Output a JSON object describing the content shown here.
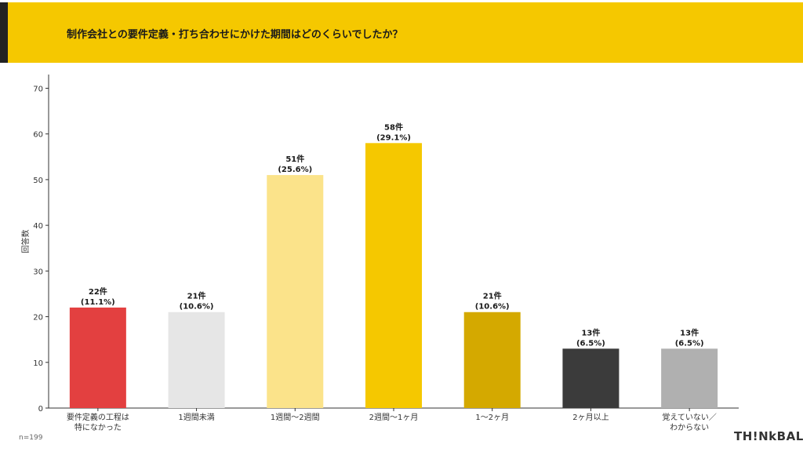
{
  "header": {
    "title": "制作会社との要件定義・打ち合わせにかけた期間はどのくらいでしたか？"
  },
  "footer": {
    "sample_size": "n=199",
    "brand": "TH!NkBAL"
  },
  "colors": {
    "header_bg": "#f5c800",
    "accent": "#222222"
  },
  "chart_data": {
    "type": "bar",
    "ylabel": "回答数",
    "xlabel": "",
    "ylim": [
      0,
      73
    ],
    "yticks": [
      0,
      10,
      20,
      30,
      40,
      50,
      60,
      70
    ],
    "grid": false,
    "categories": [
      [
        "要件定義の工程は",
        "特になかった"
      ],
      [
        "1週間未満"
      ],
      [
        "1週間〜2週間"
      ],
      [
        "2週間〜1ヶ月"
      ],
      [
        "1〜2ヶ月"
      ],
      [
        "2ヶ月以上"
      ],
      [
        "覚えていない／",
        "わからない"
      ]
    ],
    "values": [
      22,
      21,
      51,
      58,
      21,
      13,
      13
    ],
    "data_labels": [
      [
        "22件",
        "(11.1%)"
      ],
      [
        "21件",
        "(10.6%)"
      ],
      [
        "51件",
        "(25.6%)"
      ],
      [
        "58件",
        "(29.1%)"
      ],
      [
        "21件",
        "(10.6%)"
      ],
      [
        "13件",
        "(6.5%)"
      ],
      [
        "13件",
        "(6.5%)"
      ]
    ],
    "bar_colors": [
      "#e34040",
      "#e6e6e6",
      "#fbe38a",
      "#f5c800",
      "#d4a900",
      "#3b3b3b",
      "#b0b0b0"
    ]
  }
}
